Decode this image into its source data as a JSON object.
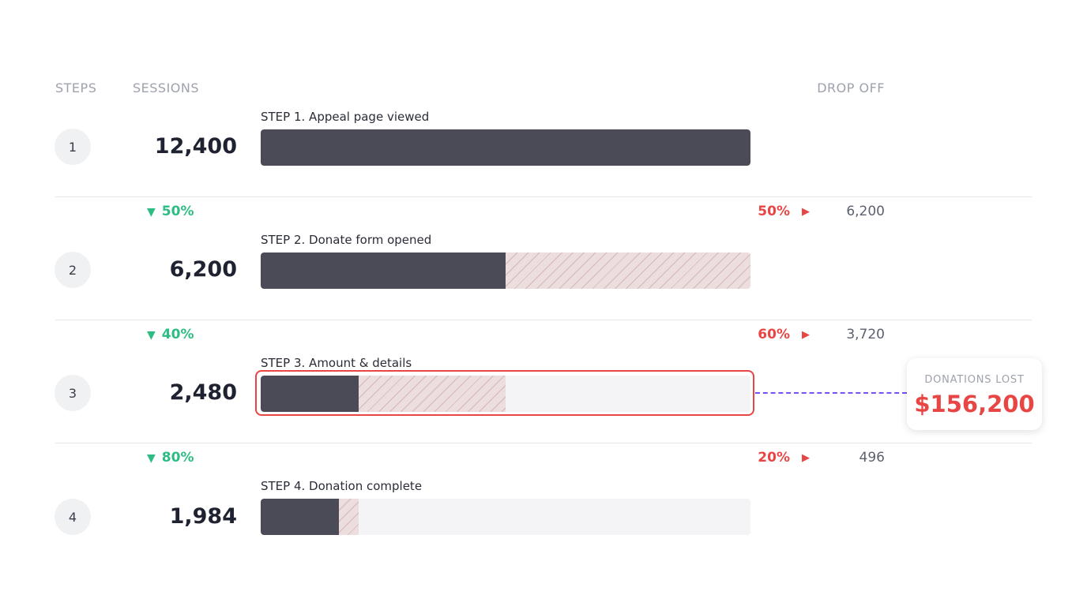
{
  "headers": {
    "steps": "STEPS",
    "sessions": "SESSIONS",
    "drop_off": "DROP OFF"
  },
  "chart_data": {
    "type": "bar",
    "steps": [
      {
        "num": "1",
        "label": "STEP 1. Appeal page viewed",
        "sessions": 12400,
        "sessions_text": "12,400"
      },
      {
        "num": "2",
        "label": "STEP 2. Donate form opened",
        "sessions": 6200,
        "sessions_text": "6,200"
      },
      {
        "num": "3",
        "label": "STEP 3. Amount & details",
        "sessions": 2480,
        "sessions_text": "2,480"
      },
      {
        "num": "4",
        "label": "STEP 4. Donation complete",
        "sessions": 1984,
        "sessions_text": "1,984"
      }
    ],
    "transitions": [
      {
        "conversion": "50%",
        "drop_pct": "50%",
        "drop_value": "6,200"
      },
      {
        "conversion": "40%",
        "drop_pct": "60%",
        "drop_value": "3,720"
      },
      {
        "conversion": "80%",
        "drop_pct": "20%",
        "drop_value": "496"
      }
    ],
    "max": 12400
  },
  "highlight_step": 3,
  "callout": {
    "label": "DONATIONS LOST",
    "value": "$156,200"
  },
  "colors": {
    "bar": "#4a4b57",
    "conversion": "#2dbd83",
    "drop": "#e84545",
    "connector": "#7b4ff0"
  }
}
